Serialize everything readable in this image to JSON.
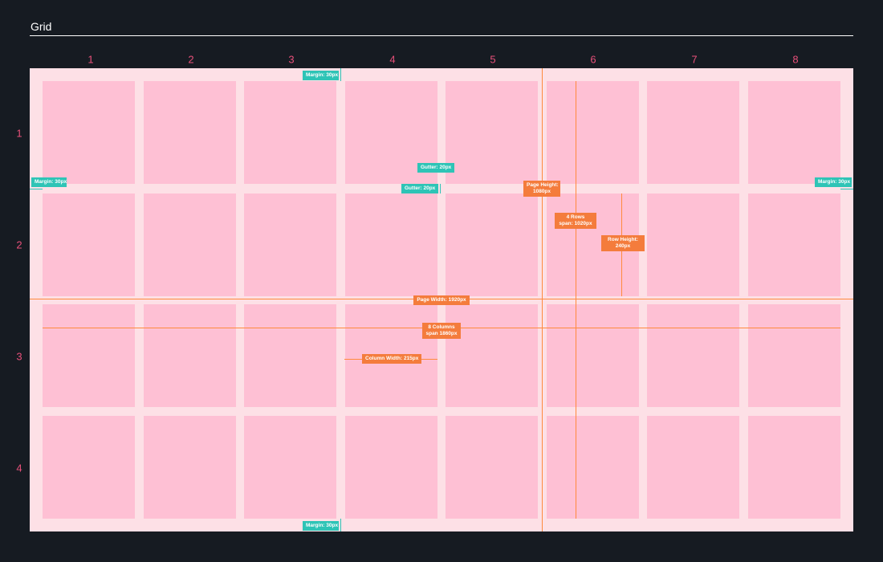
{
  "header": {
    "title": "Grid"
  },
  "grid": {
    "columns": [
      "1",
      "2",
      "3",
      "4",
      "5",
      "6",
      "7",
      "8"
    ],
    "rows": [
      "1",
      "2",
      "3",
      "4"
    ]
  },
  "annotations": {
    "margin_top": "Margin: 30px",
    "margin_bottom": "Margin: 30px",
    "margin_left": "Margin: 30px",
    "margin_right": "Margin: 30px",
    "gutter_vertical": "Gutter: 20px",
    "gutter_horizontal": "Gutter: 20px",
    "page_height_line1": "Page Height:",
    "page_height_line2": "1080px",
    "rows_span_line1": "4 Rows",
    "rows_span_line2": "span: 1020px",
    "row_height_line1": "Row Height:",
    "row_height_line2": "240px",
    "page_width": "Page Width: 1920px",
    "columns_span_line1": "8 Columns",
    "columns_span_line2": "span 1860px",
    "column_width": "Column Width: 215px"
  },
  "colors": {
    "background": "#161b22",
    "accent_pink": "#e8507a",
    "cell": "#fec0d4",
    "gutter": "#fde0e6",
    "teal": "#2ec4b6",
    "orange": "#f47c3c"
  }
}
